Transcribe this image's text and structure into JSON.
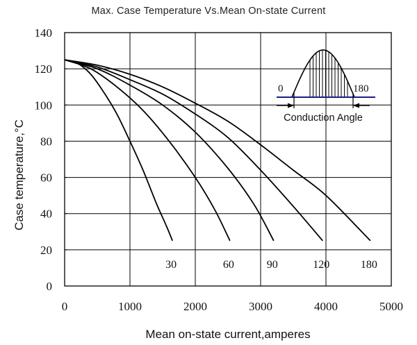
{
  "chart_data": {
    "type": "line",
    "title": "Max. Case Temperature Vs.Mean On-state Current",
    "xlabel": "Mean on-state current,amperes",
    "ylabel": "Case temperature,°C",
    "xlim": [
      0,
      5000
    ],
    "ylim": [
      0,
      140
    ],
    "xticks": [
      "0",
      "1000",
      "2000",
      "3000",
      "4000",
      "5000"
    ],
    "yticks": [
      "0",
      "20",
      "40",
      "60",
      "80",
      "100",
      "120",
      "140"
    ],
    "grid": true,
    "series": [
      {
        "name": "30",
        "x": [
          0,
          200,
          400,
          600,
          800,
          1000,
          1200,
          1400,
          1560,
          1650
        ],
        "y": [
          125,
          123,
          117,
          107,
          95,
          80,
          64,
          46,
          33,
          25
        ]
      },
      {
        "name": "60",
        "x": [
          0,
          400,
          800,
          1200,
          1600,
          2000,
          2300,
          2530
        ],
        "y": [
          125,
          120,
          110,
          97,
          80,
          60,
          42,
          25
        ]
      },
      {
        "name": "90",
        "x": [
          0,
          500,
          1000,
          1500,
          2000,
          2500,
          2900,
          3200
        ],
        "y": [
          125,
          120,
          111,
          100,
          85,
          65,
          45,
          25
        ]
      },
      {
        "name": "120",
        "x": [
          0,
          500,
          1000,
          1500,
          2000,
          2500,
          3000,
          3500,
          3950
        ],
        "y": [
          125,
          121,
          114,
          106,
          95,
          82,
          64,
          44,
          25
        ]
      },
      {
        "name": "180",
        "x": [
          0,
          500,
          1000,
          1500,
          2000,
          2500,
          3000,
          3500,
          4000,
          4680
        ],
        "y": [
          125,
          122,
          117,
          110,
          101,
          91,
          78,
          64,
          50,
          25
        ]
      }
    ],
    "inset": {
      "left_label": "0",
      "right_label": "180",
      "caption": "Conduction Angle"
    }
  }
}
